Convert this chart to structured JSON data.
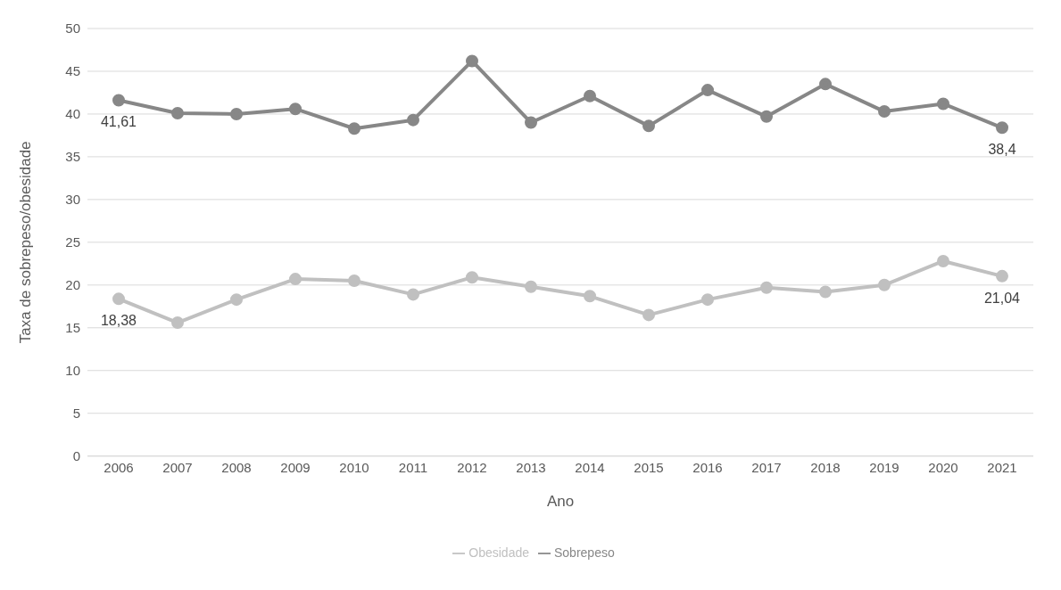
{
  "chart_data": {
    "type": "line",
    "xlabel": "Ano",
    "ylabel": "Taxa de sobrepeso/obesidade",
    "categories": [
      "2006",
      "2007",
      "2008",
      "2009",
      "2010",
      "2011",
      "2012",
      "2013",
      "2014",
      "2015",
      "2016",
      "2017",
      "2018",
      "2019",
      "2020",
      "2021"
    ],
    "series": [
      {
        "name": "Sobrepeso",
        "color": "#878787",
        "values": [
          41.61,
          40.1,
          40.0,
          40.6,
          38.3,
          39.3,
          46.2,
          39.0,
          42.1,
          38.6,
          42.8,
          39.7,
          43.5,
          40.3,
          41.2,
          38.4
        ],
        "value_labels": [
          "41,61",
          null,
          null,
          null,
          null,
          null,
          null,
          null,
          null,
          null,
          null,
          null,
          null,
          null,
          null,
          "38,4"
        ]
      },
      {
        "name": "Obesidade",
        "color": "#c0c0c0",
        "values": [
          18.38,
          15.6,
          18.3,
          20.7,
          20.5,
          18.9,
          20.9,
          19.8,
          18.7,
          16.5,
          18.3,
          19.7,
          19.2,
          20.0,
          22.8,
          21.04
        ],
        "value_labels": [
          "18,38",
          null,
          null,
          null,
          null,
          null,
          null,
          null,
          null,
          null,
          null,
          null,
          null,
          null,
          null,
          "21,04"
        ]
      }
    ],
    "ylim": [
      0,
      50
    ],
    "yticks": [
      0,
      5,
      10,
      15,
      20,
      25,
      30,
      35,
      40,
      45,
      50
    ],
    "grid": "y",
    "legend": "bottom",
    "marker": "circle",
    "line_style": "solid"
  }
}
